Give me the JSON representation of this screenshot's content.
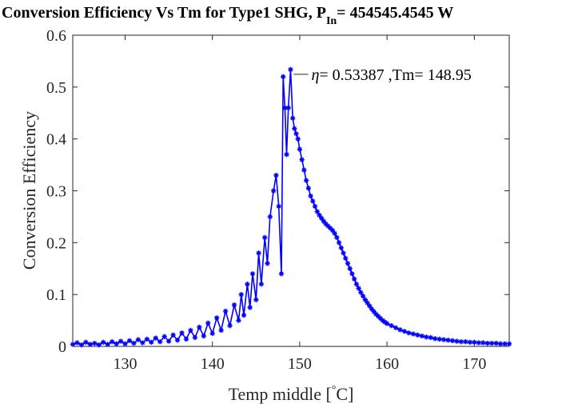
{
  "chart_data": {
    "type": "line",
    "title": {
      "main": "Conversion Efficiency Vs Tm for Type1 SHG, P",
      "subscript": "In",
      "suffix": "= 454545.4545 W"
    },
    "xlabel": {
      "text": "Temp middle [",
      "degree": "°",
      "unit": "C]"
    },
    "ylabel": "Conversion Efficiency",
    "xlim": [
      124,
      174
    ],
    "ylim": [
      0,
      0.6
    ],
    "x_ticks": [
      130,
      140,
      150,
      160,
      170
    ],
    "y_ticks": [
      0,
      0.1,
      0.2,
      0.3,
      0.4,
      0.5,
      0.6
    ],
    "y_tick_labels": [
      "0",
      "0.1",
      "0.2",
      "0.3",
      "0.4",
      "0.5",
      "0.6"
    ],
    "grid": false,
    "line_color": "#0000ff",
    "marker": "asterisk",
    "annotation": {
      "symbol": "η",
      "text": "= 0.53387 ,Tm= 148.95",
      "x": 148.95,
      "y": 0.53387
    },
    "x": [
      124.0,
      124.5,
      125.0,
      125.5,
      126.0,
      126.5,
      127.0,
      127.5,
      128.0,
      128.5,
      129.0,
      129.5,
      130.0,
      130.5,
      131.0,
      131.5,
      132.0,
      132.5,
      133.0,
      133.5,
      134.0,
      134.5,
      135.0,
      135.5,
      136.0,
      136.5,
      137.0,
      137.5,
      138.0,
      138.5,
      139.0,
      139.5,
      140.0,
      140.5,
      141.0,
      141.5,
      142.0,
      142.5,
      143.0,
      143.3,
      143.6,
      144.0,
      144.3,
      144.6,
      145.0,
      145.3,
      145.6,
      146.0,
      146.3,
      146.6,
      147.0,
      147.3,
      147.6,
      147.9,
      148.1,
      148.3,
      148.5,
      148.7,
      148.95,
      149.2,
      149.4,
      149.6,
      149.8,
      150.0,
      150.25,
      150.5,
      150.75,
      151.0,
      151.25,
      151.5,
      151.75,
      152.0,
      152.25,
      152.5,
      152.75,
      153.0,
      153.25,
      153.5,
      153.75,
      154.0,
      154.25,
      154.5,
      154.75,
      155.0,
      155.25,
      155.5,
      155.75,
      156.0,
      156.25,
      156.5,
      156.75,
      157.0,
      157.25,
      157.5,
      157.75,
      158.0,
      158.25,
      158.5,
      158.75,
      159.0,
      159.25,
      159.5,
      159.75,
      160.0,
      160.5,
      161.0,
      161.5,
      162.0,
      162.5,
      163.0,
      163.5,
      164.0,
      164.5,
      165.0,
      165.5,
      166.0,
      166.5,
      167.0,
      167.5,
      168.0,
      168.5,
      169.0,
      169.5,
      170.0,
      170.5,
      171.0,
      171.5,
      172.0,
      172.5,
      173.0,
      173.5,
      174.0
    ],
    "y": [
      0.004,
      0.007,
      0.003,
      0.008,
      0.004,
      0.006,
      0.003,
      0.008,
      0.004,
      0.009,
      0.005,
      0.01,
      0.005,
      0.011,
      0.006,
      0.013,
      0.007,
      0.014,
      0.008,
      0.016,
      0.009,
      0.019,
      0.01,
      0.022,
      0.012,
      0.026,
      0.014,
      0.031,
      0.017,
      0.037,
      0.02,
      0.045,
      0.025,
      0.055,
      0.031,
      0.068,
      0.04,
      0.08,
      0.05,
      0.1,
      0.06,
      0.12,
      0.075,
      0.14,
      0.09,
      0.18,
      0.12,
      0.21,
      0.16,
      0.25,
      0.3,
      0.33,
      0.27,
      0.14,
      0.52,
      0.46,
      0.37,
      0.46,
      0.53387,
      0.44,
      0.42,
      0.41,
      0.4,
      0.38,
      0.36,
      0.34,
      0.32,
      0.305,
      0.29,
      0.28,
      0.27,
      0.26,
      0.253,
      0.247,
      0.241,
      0.236,
      0.232,
      0.228,
      0.224,
      0.218,
      0.21,
      0.2,
      0.19,
      0.18,
      0.17,
      0.16,
      0.15,
      0.14,
      0.13,
      0.12,
      0.112,
      0.104,
      0.097,
      0.09,
      0.084,
      0.078,
      0.072,
      0.067,
      0.062,
      0.058,
      0.054,
      0.05,
      0.047,
      0.044,
      0.04,
      0.036,
      0.032,
      0.029,
      0.026,
      0.024,
      0.022,
      0.02,
      0.018,
      0.017,
      0.015,
      0.014,
      0.013,
      0.012,
      0.011,
      0.01,
      0.009,
      0.009,
      0.008,
      0.008,
      0.007,
      0.007,
      0.006,
      0.006,
      0.006,
      0.005,
      0.005,
      0.005
    ]
  }
}
